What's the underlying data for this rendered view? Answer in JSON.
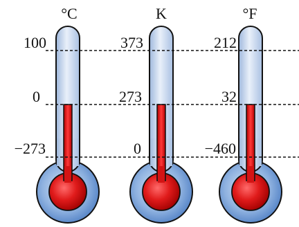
{
  "thermometers": [
    {
      "unit": "°C",
      "labels": [
        "100",
        "0",
        "−273"
      ]
    },
    {
      "unit": "K",
      "labels": [
        "373",
        "273",
        "0"
      ]
    },
    {
      "unit": "°F",
      "labels": [
        "212",
        "32",
        "−460"
      ]
    }
  ]
}
